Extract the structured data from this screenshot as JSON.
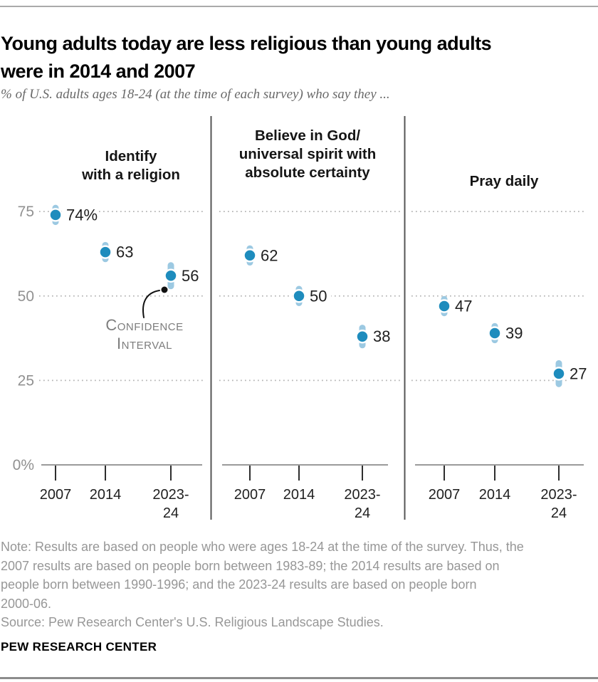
{
  "header": {
    "title": "Young adults today are less religious than young adults\nwere in 2014 and 2007",
    "subtitle": "% of U.S. adults ages 18-24 (at the time of each survey) who say they ..."
  },
  "chart_data": {
    "type": "scatter",
    "description": "Dot plot with confidence intervals, three panels sharing one y-axis",
    "categories": [
      "2007",
      "2014",
      "2023-24"
    ],
    "y_axis": {
      "tick_values": [
        75,
        50,
        25,
        0
      ],
      "tick_labels": [
        "75",
        "50",
        "25",
        "0%"
      ],
      "gridlines": [
        75,
        50,
        25
      ],
      "range": [
        0,
        80
      ]
    },
    "panels": [
      {
        "title": "Identify\nwith a religion",
        "values": [
          74,
          63,
          56
        ],
        "labels": [
          "74%",
          "63",
          "56"
        ],
        "ci": [
          [
            71,
            77
          ],
          [
            60,
            66
          ],
          [
            52,
            60
          ]
        ]
      },
      {
        "title": "Believe in God/\nuniversal spirit with\nabsolute certainty",
        "values": [
          62,
          50,
          38
        ],
        "labels": [
          "62",
          "50",
          "38"
        ],
        "ci": [
          [
            59,
            65
          ],
          [
            47,
            53
          ],
          [
            34.5,
            41.5
          ]
        ]
      },
      {
        "title": "Pray daily",
        "values": [
          47,
          39,
          27
        ],
        "labels": [
          "47",
          "39",
          "27"
        ],
        "ci": [
          [
            44,
            50
          ],
          [
            36,
            42
          ],
          [
            23,
            31
          ]
        ]
      }
    ],
    "annotation": {
      "label": "Confidence\nInterval"
    },
    "colors": {
      "dot": "#1e8cbd",
      "ci": "#9cc9e2",
      "grid": "#b3b3b3",
      "axis": "#9a9a9a",
      "tick": "#2e2e2e",
      "divider": "#555555",
      "panel_title": "#151515",
      "value_label": "#1f1f1f",
      "x_label": "#1f1f1f",
      "y_label": "#919191",
      "annotation": "#7d7d7d",
      "arrow": "#111111"
    }
  },
  "footer": {
    "note": "Note: Results are based on people who were ages 18-24 at the time of the survey. Thus, the\n2007 results are based on people born between 1983-89; the 2014 results are based on\npeople born between 1990-1996; and the 2023-24 results are based on people born\n2000-06.",
    "source": "Source: Pew Research Center's U.S. Religious Landscape Studies.",
    "brand": "PEW RESEARCH CENTER"
  }
}
